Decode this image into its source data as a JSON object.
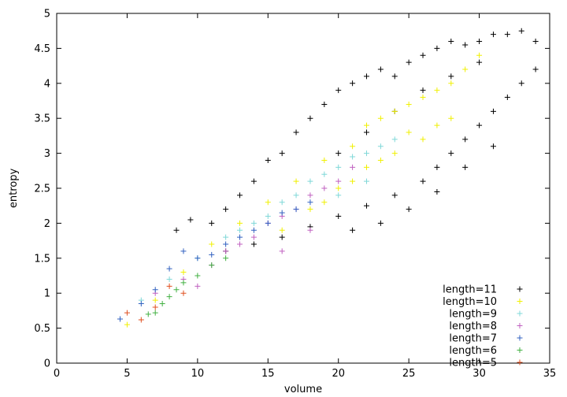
{
  "chart_data": {
    "type": "scatter",
    "title": "",
    "xlabel": "volume",
    "ylabel": "entropy",
    "xlim": [
      0,
      35
    ],
    "ylim": [
      0,
      5
    ],
    "xticks": [
      0,
      5,
      10,
      15,
      20,
      25,
      30,
      35
    ],
    "yticks": [
      0,
      0.5,
      1,
      1.5,
      2,
      2.5,
      3,
      3.5,
      4,
      4.5,
      5
    ],
    "grid": false,
    "legend_position": "bottom-right",
    "marker": "+",
    "series": [
      {
        "name": "length=11",
        "color": "#000000",
        "points": [
          [
            8.5,
            1.9
          ],
          [
            9.5,
            2.05
          ],
          [
            11,
            2.0
          ],
          [
            12,
            2.2
          ],
          [
            13,
            2.4
          ],
          [
            14,
            2.6
          ],
          [
            15,
            2.9
          ],
          [
            16,
            3.0
          ],
          [
            17,
            3.3
          ],
          [
            18,
            3.5
          ],
          [
            19,
            3.7
          ],
          [
            20,
            3.9
          ],
          [
            21,
            4.0
          ],
          [
            22,
            4.1
          ],
          [
            23,
            4.2
          ],
          [
            24,
            4.1
          ],
          [
            25,
            4.3
          ],
          [
            26,
            4.4
          ],
          [
            27,
            4.5
          ],
          [
            28,
            4.6
          ],
          [
            29,
            4.55
          ],
          [
            30,
            4.6
          ],
          [
            31,
            4.7
          ],
          [
            32,
            4.7
          ],
          [
            33,
            4.75
          ],
          [
            34,
            4.6
          ],
          [
            12,
            1.6
          ],
          [
            14,
            1.7
          ],
          [
            16,
            1.8
          ],
          [
            18,
            1.95
          ],
          [
            20,
            2.1
          ],
          [
            22,
            2.25
          ],
          [
            24,
            2.4
          ],
          [
            26,
            2.6
          ],
          [
            27,
            2.8
          ],
          [
            28,
            3.0
          ],
          [
            29,
            3.2
          ],
          [
            30,
            3.4
          ],
          [
            31,
            3.6
          ],
          [
            32,
            3.8
          ],
          [
            33,
            4.0
          ],
          [
            34,
            4.2
          ],
          [
            20,
            3.0
          ],
          [
            22,
            3.3
          ],
          [
            24,
            3.6
          ],
          [
            26,
            3.9
          ],
          [
            28,
            4.1
          ],
          [
            30,
            4.3
          ],
          [
            25,
            2.2
          ],
          [
            27,
            2.45
          ],
          [
            29,
            2.8
          ],
          [
            31,
            3.1
          ],
          [
            23,
            2.0
          ],
          [
            21,
            1.9
          ]
        ]
      },
      {
        "name": "length=10",
        "color": "#f0f000",
        "points": [
          [
            5,
            0.55
          ],
          [
            7,
            0.9
          ],
          [
            9,
            1.3
          ],
          [
            11,
            1.7
          ],
          [
            13,
            2.0
          ],
          [
            15,
            2.3
          ],
          [
            17,
            2.6
          ],
          [
            19,
            2.9
          ],
          [
            21,
            3.1
          ],
          [
            22,
            3.4
          ],
          [
            23,
            3.5
          ],
          [
            24,
            3.6
          ],
          [
            25,
            3.7
          ],
          [
            26,
            3.8
          ],
          [
            27,
            3.9
          ],
          [
            28,
            4.0
          ],
          [
            29,
            4.2
          ],
          [
            30,
            4.4
          ],
          [
            18,
            2.2
          ],
          [
            20,
            2.5
          ],
          [
            22,
            2.8
          ],
          [
            24,
            3.0
          ],
          [
            26,
            3.2
          ],
          [
            16,
            1.9
          ],
          [
            19,
            2.3
          ],
          [
            21,
            2.6
          ],
          [
            23,
            2.9
          ],
          [
            25,
            3.3
          ],
          [
            27,
            3.4
          ],
          [
            28,
            3.5
          ]
        ]
      },
      {
        "name": "length=9",
        "color": "#7fd8d8",
        "points": [
          [
            6,
            0.9
          ],
          [
            8,
            1.2
          ],
          [
            10,
            1.5
          ],
          [
            12,
            1.8
          ],
          [
            14,
            2.0
          ],
          [
            16,
            2.3
          ],
          [
            18,
            2.6
          ],
          [
            20,
            2.8
          ],
          [
            21,
            2.95
          ],
          [
            22,
            3.0
          ],
          [
            23,
            3.1
          ],
          [
            24,
            3.2
          ],
          [
            17,
            2.4
          ],
          [
            19,
            2.7
          ],
          [
            15,
            2.1
          ],
          [
            13,
            1.9
          ],
          [
            22,
            2.6
          ],
          [
            20,
            2.4
          ]
        ]
      },
      {
        "name": "length=8",
        "color": "#c060c0",
        "points": [
          [
            7,
            1.0
          ],
          [
            9,
            1.2
          ],
          [
            10,
            1.1
          ],
          [
            11,
            1.4
          ],
          [
            12,
            1.6
          ],
          [
            13,
            1.7
          ],
          [
            14,
            1.8
          ],
          [
            15,
            2.0
          ],
          [
            16,
            2.1
          ],
          [
            17,
            2.2
          ],
          [
            18,
            2.4
          ],
          [
            19,
            2.5
          ],
          [
            20,
            2.6
          ],
          [
            21,
            2.8
          ],
          [
            16,
            1.6
          ],
          [
            18,
            1.9
          ]
        ]
      },
      {
        "name": "length=7",
        "color": "#3060c0",
        "points": [
          [
            4.5,
            0.63
          ],
          [
            6,
            0.85
          ],
          [
            7,
            1.05
          ],
          [
            8,
            1.35
          ],
          [
            9,
            1.6
          ],
          [
            10,
            1.5
          ],
          [
            11,
            1.55
          ],
          [
            12,
            1.7
          ],
          [
            13,
            1.8
          ],
          [
            14,
            1.9
          ],
          [
            15,
            2.0
          ],
          [
            16,
            2.15
          ],
          [
            17,
            2.2
          ],
          [
            18,
            2.3
          ]
        ]
      },
      {
        "name": "length=6",
        "color": "#40b040",
        "points": [
          [
            6.5,
            0.7
          ],
          [
            7,
            0.72
          ],
          [
            7.5,
            0.85
          ],
          [
            8,
            0.95
          ],
          [
            8.5,
            1.05
          ],
          [
            9,
            1.15
          ],
          [
            10,
            1.25
          ],
          [
            11,
            1.4
          ],
          [
            12,
            1.5
          ]
        ]
      },
      {
        "name": "length=5",
        "color": "#e05020",
        "points": [
          [
            5,
            0.72
          ],
          [
            6,
            0.62
          ],
          [
            7,
            0.8
          ],
          [
            8,
            1.1
          ],
          [
            9,
            1.0
          ]
        ]
      }
    ]
  }
}
